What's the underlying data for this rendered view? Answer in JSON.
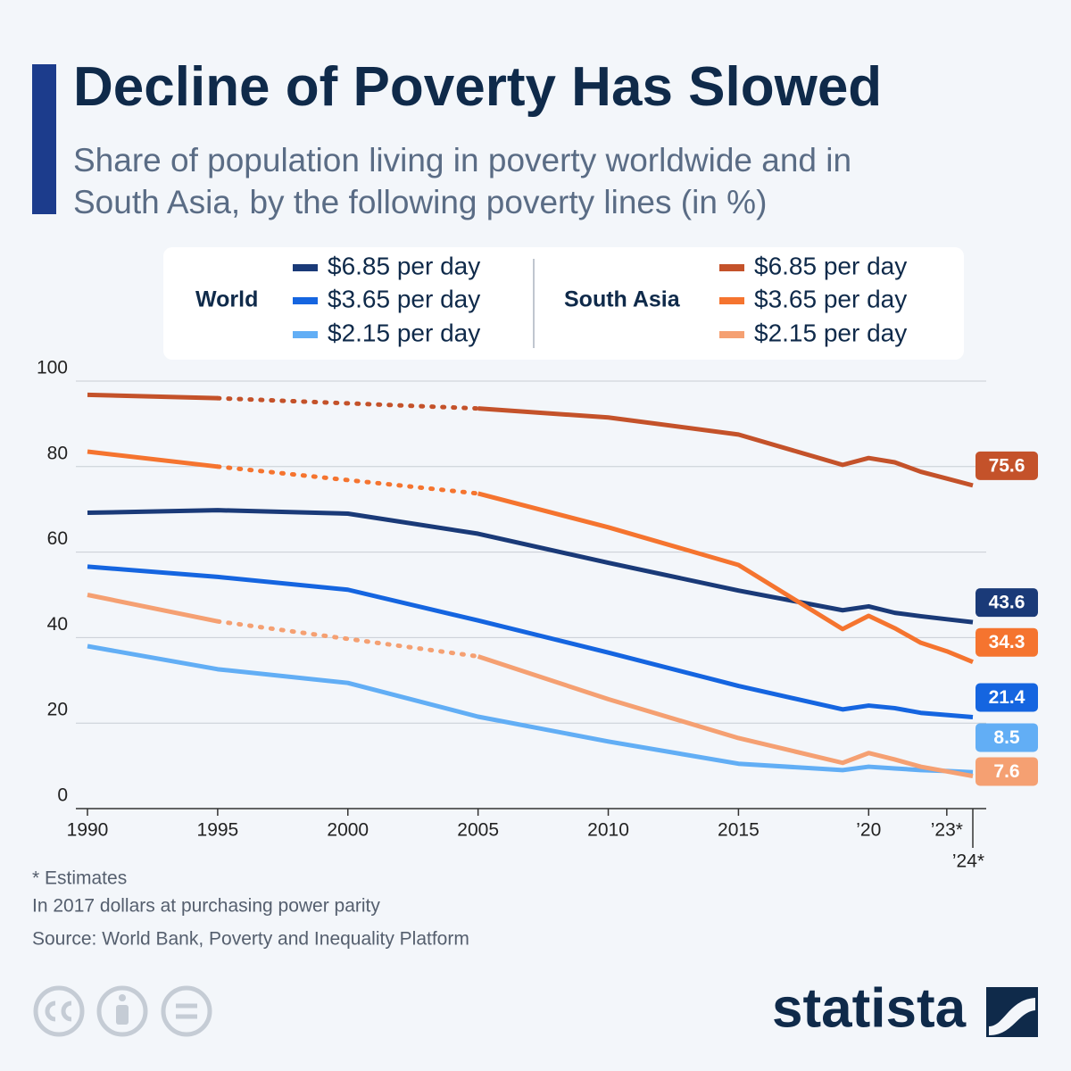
{
  "chart_data": {
    "type": "line",
    "title": "Decline of Poverty Has Slowed",
    "subtitle": "Share of population living in poverty worldwide and in South Asia, by the following poverty lines (in %)",
    "x": [
      1990,
      1995,
      2000,
      2005,
      2010,
      2015,
      2019,
      2020,
      2021,
      2022,
      2023,
      2024
    ],
    "xlim": [
      1990,
      2024
    ],
    "xticks": [
      1990,
      1995,
      2000,
      2005,
      2010,
      2015,
      {
        "value": 2020,
        "label": "’20"
      },
      {
        "value": 2023,
        "label": "’23*"
      },
      {
        "value": 2024,
        "label": "’24*"
      }
    ],
    "ylim": [
      0,
      100
    ],
    "yticks": [
      0,
      20,
      40,
      60,
      80,
      100
    ],
    "grid": true,
    "groups": [
      {
        "name": "World",
        "series": [
          {
            "name": "$6.85 per day",
            "color": "#1a3a78",
            "values": [
              69.2,
              69.8,
              69.0,
              64.3,
              57.5,
              51.0,
              46.4,
              47.3,
              45.8,
              45.0,
              44.3,
              43.6
            ]
          },
          {
            "name": "$3.65 per day",
            "color": "#1565e0",
            "values": [
              56.6,
              54.2,
              51.2,
              44.0,
              36.5,
              28.7,
              23.2,
              24.1,
              23.5,
              22.4,
              21.9,
              21.4
            ]
          },
          {
            "name": "$2.15 per day",
            "color": "#62aef5",
            "values": [
              38.0,
              32.6,
              29.4,
              21.5,
              15.7,
              10.5,
              9.0,
              9.8,
              9.4,
              9.0,
              8.8,
              8.5
            ]
          }
        ]
      },
      {
        "name": "South Asia",
        "series": [
          {
            "name": "$6.85 per day",
            "color": "#c4522a",
            "values": [
              96.8,
              96.0,
              null,
              93.6,
              91.5,
              87.5,
              80.4,
              82.0,
              81.0,
              78.8,
              77.2,
              75.6
            ]
          },
          {
            "name": "$3.65 per day",
            "color": "#f5742f",
            "values": [
              83.5,
              80.0,
              null,
              73.7,
              65.8,
              57.0,
              42.0,
              45.1,
              42.2,
              38.8,
              36.8,
              34.3
            ]
          },
          {
            "name": "$2.15 per day",
            "color": "#f5a072",
            "values": [
              50.0,
              43.8,
              null,
              35.6,
              25.6,
              16.5,
              10.7,
              13.0,
              11.5,
              9.8,
              8.7,
              7.6
            ]
          }
        ]
      }
    ],
    "notes": [
      "* Estimates",
      "In 2017 dollars at purchasing power parity",
      "Source: World Bank, Poverty and Inequality Platform"
    ],
    "brand": "statista"
  }
}
